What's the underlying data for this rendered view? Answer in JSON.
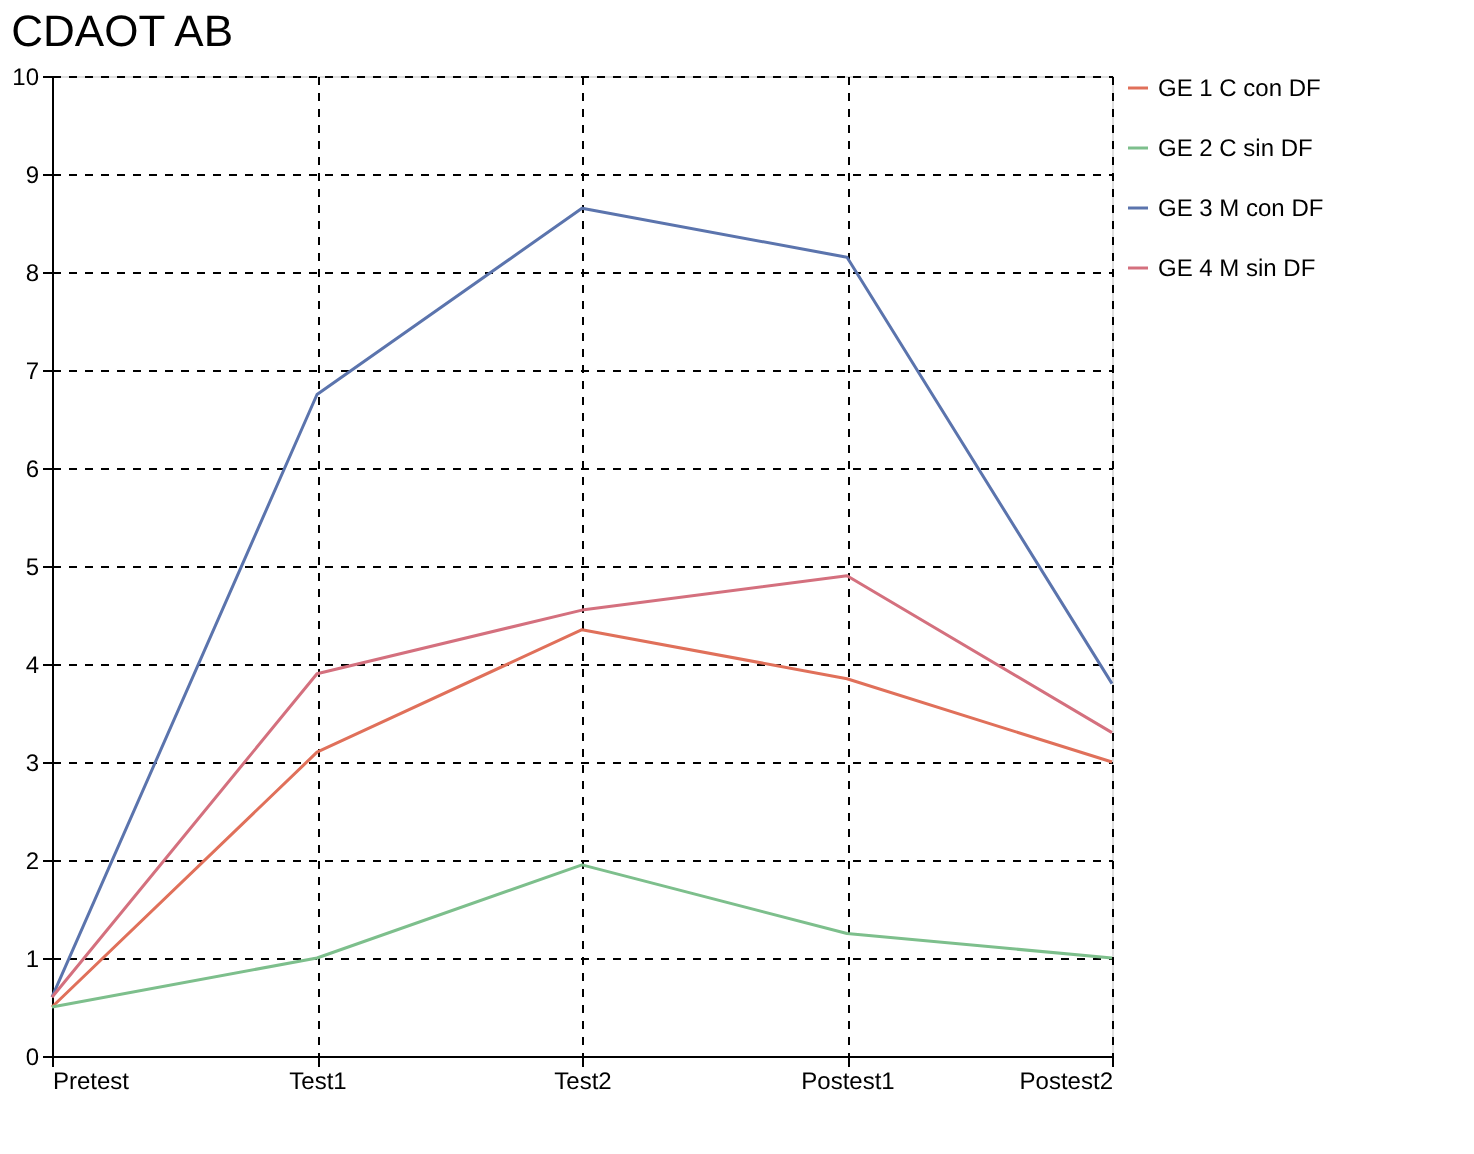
{
  "chart_data": {
    "type": "line",
    "title": "CDAOT AB",
    "categories": [
      "Pretest",
      "Test1",
      "Test2",
      "Postest1",
      "Postest2"
    ],
    "series": [
      {
        "name": "GE 1 C con DF",
        "color": "#e0705a",
        "values": [
          0.5,
          3.1,
          4.35,
          3.85,
          3.0
        ]
      },
      {
        "name": "GE 2 C sin DF",
        "color": "#7dbf8c",
        "values": [
          0.5,
          1.0,
          1.95,
          1.25,
          1.0
        ]
      },
      {
        "name": "GE 3 M con DF",
        "color": "#5b74ad",
        "values": [
          0.6,
          6.75,
          8.65,
          8.15,
          3.8
        ]
      },
      {
        "name": "GE 4 M sin DF",
        "color": "#d4707e",
        "values": [
          0.6,
          3.9,
          4.55,
          4.9,
          3.3
        ]
      }
    ],
    "ylim": [
      0,
      10
    ],
    "yticks": [
      0,
      1,
      2,
      3,
      4,
      5,
      6,
      7,
      8,
      9,
      10
    ],
    "grid": true,
    "legend": "right",
    "marker": "none",
    "line_style": "solid"
  }
}
